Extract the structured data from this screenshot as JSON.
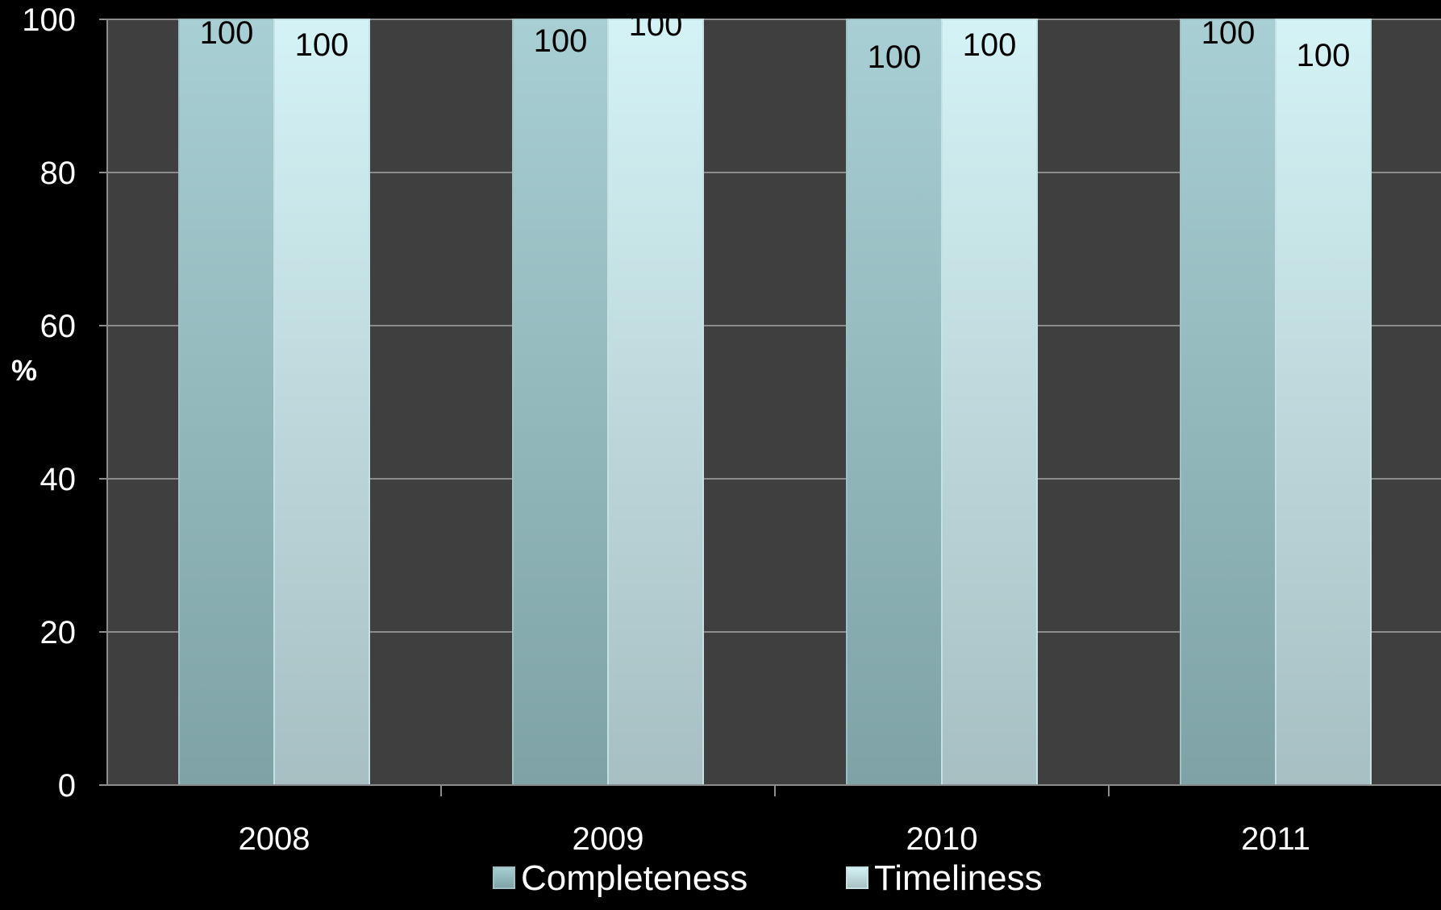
{
  "chart_data": {
    "type": "bar",
    "categories": [
      "2008",
      "2009",
      "2010",
      "2011"
    ],
    "series": [
      {
        "name": "Completeness",
        "values": [
          100,
          100,
          100,
          100
        ]
      },
      {
        "name": "Timeliness",
        "values": [
          100,
          100,
          100,
          100
        ]
      }
    ],
    "data_labels": [
      [
        "100",
        "100",
        "100",
        "100"
      ],
      [
        "100",
        "100",
        "100",
        "100"
      ]
    ],
    "ylabel": "%",
    "xlabel": "",
    "title": "",
    "ylim": [
      0,
      100
    ],
    "yticks": [
      0,
      20,
      40,
      60,
      80,
      100
    ],
    "grid": true,
    "legend_position": "bottom",
    "colors": {
      "page_background": "#000000",
      "plot_background": "#3f3f3f",
      "gridline": "#8c8c8c",
      "completeness_top": "#a8cfd4",
      "completeness_bottom": "#7ea2a5",
      "timeliness_top": "#d4f3f6",
      "timeliness_bottom": "#a7bfc2"
    }
  }
}
